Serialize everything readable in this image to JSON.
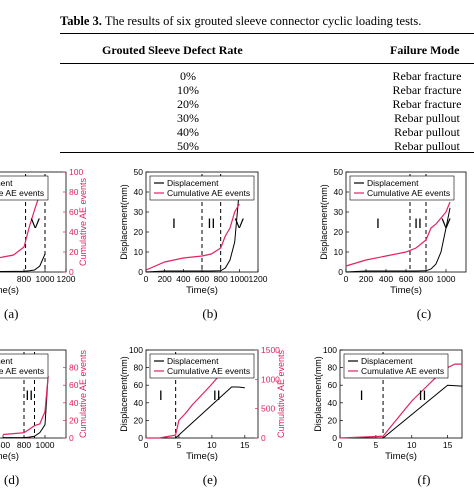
{
  "table": {
    "caption_label": "Table 3.",
    "caption_text": " The results of six grouted sleeve connector cyclic loading tests.",
    "header_rate": "Grouted Sleeve Defect Rate",
    "header_mode": "Failure Mode",
    "rows": [
      {
        "rate": "0%",
        "mode": "Rebar fracture"
      },
      {
        "rate": "10%",
        "mode": "Rebar fracture"
      },
      {
        "rate": "20%",
        "mode": "Rebar fracture"
      },
      {
        "rate": "30%",
        "mode": "Rebar pullout"
      },
      {
        "rate": "40%",
        "mode": "Rebar pullout"
      },
      {
        "rate": "50%",
        "mode": "Rebar pullout"
      }
    ]
  },
  "colors": {
    "displacement": "#000000",
    "ae": "#e0245e"
  },
  "labels": {
    "displacement": "Displacement",
    "ae": "Cumulative AE events",
    "xlabel": "Time(s)",
    "ylabel_left": "Displacement(mm)",
    "ylabel_right": "Cumulative AE events"
  },
  "panel_labels": [
    "(a)",
    "(b)",
    "(c)",
    "(d)",
    "(e)",
    "(f)"
  ],
  "chart_data": [
    {
      "id": "a",
      "type": "line",
      "xlim": [
        0,
        1200
      ],
      "xticks": [
        "800",
        "1000",
        "1200"
      ],
      "yticks_right": [
        "0",
        "20",
        "40",
        "60",
        "80",
        "100"
      ],
      "ylim_right": [
        0,
        100
      ],
      "phase_labels": [
        "II",
        "V"
      ],
      "phase_x": [
        815,
        1000
      ],
      "series": [
        {
          "name": "Displacement",
          "x": [
            0,
            100,
            200,
            300,
            400,
            500,
            600,
            700,
            800,
            850,
            900,
            950,
            1000
          ],
          "y": [
            0,
            0.5,
            0.5,
            0.5,
            0.5,
            0.5,
            0.5,
            0.6,
            0.8,
            1.2,
            2,
            6,
            18
          ]
        },
        {
          "name": "Cumulative AE events",
          "x": [
            0,
            100,
            200,
            300,
            400,
            500,
            600,
            700,
            800,
            850,
            900,
            950,
            1000
          ],
          "y": [
            2,
            4,
            7,
            9,
            11,
            13,
            15,
            17,
            25,
            45,
            62,
            78,
            90
          ]
        }
      ]
    },
    {
      "id": "b",
      "type": "line",
      "xlim": [
        0,
        1200
      ],
      "xticks": [
        "0",
        "200",
        "400",
        "600",
        "800",
        "1000",
        "1200"
      ],
      "yticks_left": [
        "0",
        "10",
        "20",
        "30",
        "40",
        "50"
      ],
      "ylim_left": [
        0,
        50
      ],
      "xlabel": "Time(s)",
      "ylabel": "Displacement(mm)",
      "phase_labels": [
        "I",
        "II",
        "V"
      ],
      "phase_x": [
        600,
        800
      ],
      "series": [
        {
          "name": "Displacement",
          "x": [
            0,
            200,
            400,
            600,
            700,
            800,
            850,
            900,
            950,
            1000
          ],
          "y": [
            0,
            0.5,
            0.5,
            0.5,
            0.5,
            0.6,
            2,
            6,
            15,
            41
          ]
        },
        {
          "name": "Cumulative AE events",
          "x": [
            0,
            200,
            400,
            600,
            700,
            800,
            850,
            900,
            950,
            1000
          ],
          "y": [
            1,
            5,
            7,
            8,
            9,
            12,
            18,
            22,
            30,
            34
          ]
        }
      ]
    },
    {
      "id": "c",
      "type": "line",
      "xlim": [
        0,
        1200
      ],
      "xticks": [
        "0",
        "200",
        "400",
        "600",
        "800",
        "1000"
      ],
      "yticks_left": [
        "0",
        "10",
        "20",
        "30",
        "40",
        "50"
      ],
      "ylim_left": [
        0,
        50
      ],
      "xlabel": "Time(s)",
      "ylabel": "Displacement(mm)",
      "phase_labels": [
        "I",
        "II",
        "V"
      ],
      "phase_x": [
        640,
        800
      ],
      "series": [
        {
          "name": "Displacement",
          "x": [
            0,
            200,
            400,
            600,
            700,
            800,
            850,
            900,
            950,
            1000,
            1040
          ],
          "y": [
            0,
            0.5,
            0.5,
            0.5,
            0.5,
            0.6,
            1.5,
            4,
            10,
            22,
            32
          ]
        },
        {
          "name": "Cumulative AE events",
          "x": [
            0,
            200,
            400,
            600,
            700,
            800,
            850,
            900,
            950,
            1000,
            1040
          ],
          "y": [
            3,
            6,
            8,
            10,
            12,
            16,
            22,
            24,
            27,
            30,
            35
          ]
        }
      ]
    },
    {
      "id": "d",
      "type": "line",
      "xlim": [
        0,
        1200
      ],
      "xticks": [
        "600",
        "800",
        "1000"
      ],
      "yticks_right": [
        "0",
        "20",
        "40",
        "60",
        "80"
      ],
      "phase_labels": [
        "I",
        "II"
      ],
      "phase_x": [
        800,
        900
      ],
      "series": [
        {
          "name": "Displacement",
          "x": [
            600,
            700,
            800,
            850,
            900,
            950,
            1000,
            1030
          ],
          "y": [
            0.5,
            0.5,
            0.5,
            1,
            2,
            6,
            15,
            70
          ]
        },
        {
          "name": "Cumulative AE events",
          "x": [
            600,
            700,
            800,
            850,
            900,
            950,
            1000,
            1030
          ],
          "y": [
            4,
            5,
            6,
            10,
            14,
            16,
            30,
            70
          ]
        }
      ]
    },
    {
      "id": "e",
      "type": "line",
      "xlim": [
        0,
        17
      ],
      "xticks": [
        "0",
        "5",
        "10",
        "15"
      ],
      "yticks_left": [
        "0",
        "20",
        "40",
        "60",
        "80",
        "100"
      ],
      "ylim_left": [
        0,
        100
      ],
      "yticks_right": [
        "0",
        "500",
        "1000",
        "1500"
      ],
      "ylim_right": [
        0,
        1500
      ],
      "xlabel": "Time(s)",
      "ylabel": "Displacement(mm)",
      "ylabel_right": "Cumulative AE events",
      "phase_labels": [
        "I",
        "II"
      ],
      "phase_x": [
        4.5
      ],
      "series": [
        {
          "name": "Displacement",
          "x": [
            0,
            4.5,
            13,
            14,
            15
          ],
          "y": [
            0,
            0,
            58,
            58,
            57
          ]
        },
        {
          "name": "Cumulative AE events",
          "x": [
            0,
            2,
            4.5,
            5,
            6,
            7,
            8,
            9,
            10,
            11,
            12,
            13,
            14,
            16
          ],
          "y": [
            0,
            0,
            50,
            300,
            420,
            560,
            680,
            800,
            920,
            1050,
            1150,
            1250,
            1300,
            1300
          ]
        }
      ]
    },
    {
      "id": "f",
      "type": "line",
      "xlim": [
        0,
        17
      ],
      "xticks": [
        "0",
        "5",
        "10",
        "15"
      ],
      "yticks_left": [
        "0",
        "20",
        "40",
        "60",
        "80",
        "100"
      ],
      "ylim_left": [
        0,
        100
      ],
      "xlabel": "Time(s)",
      "ylabel": "Displacement(mm)",
      "phase_labels": [
        "I",
        "II"
      ],
      "phase_x": [
        6
      ],
      "series": [
        {
          "name": "Displacement",
          "x": [
            0,
            6,
            15,
            17
          ],
          "y": [
            0,
            0,
            60,
            59
          ]
        },
        {
          "name": "Cumulative AE events",
          "x": [
            0,
            6,
            7,
            8,
            9,
            10,
            11,
            12,
            13,
            14,
            15,
            16,
            17
          ],
          "y": [
            0,
            2,
            12,
            22,
            32,
            42,
            50,
            58,
            66,
            74,
            80,
            84,
            84
          ]
        }
      ]
    }
  ]
}
